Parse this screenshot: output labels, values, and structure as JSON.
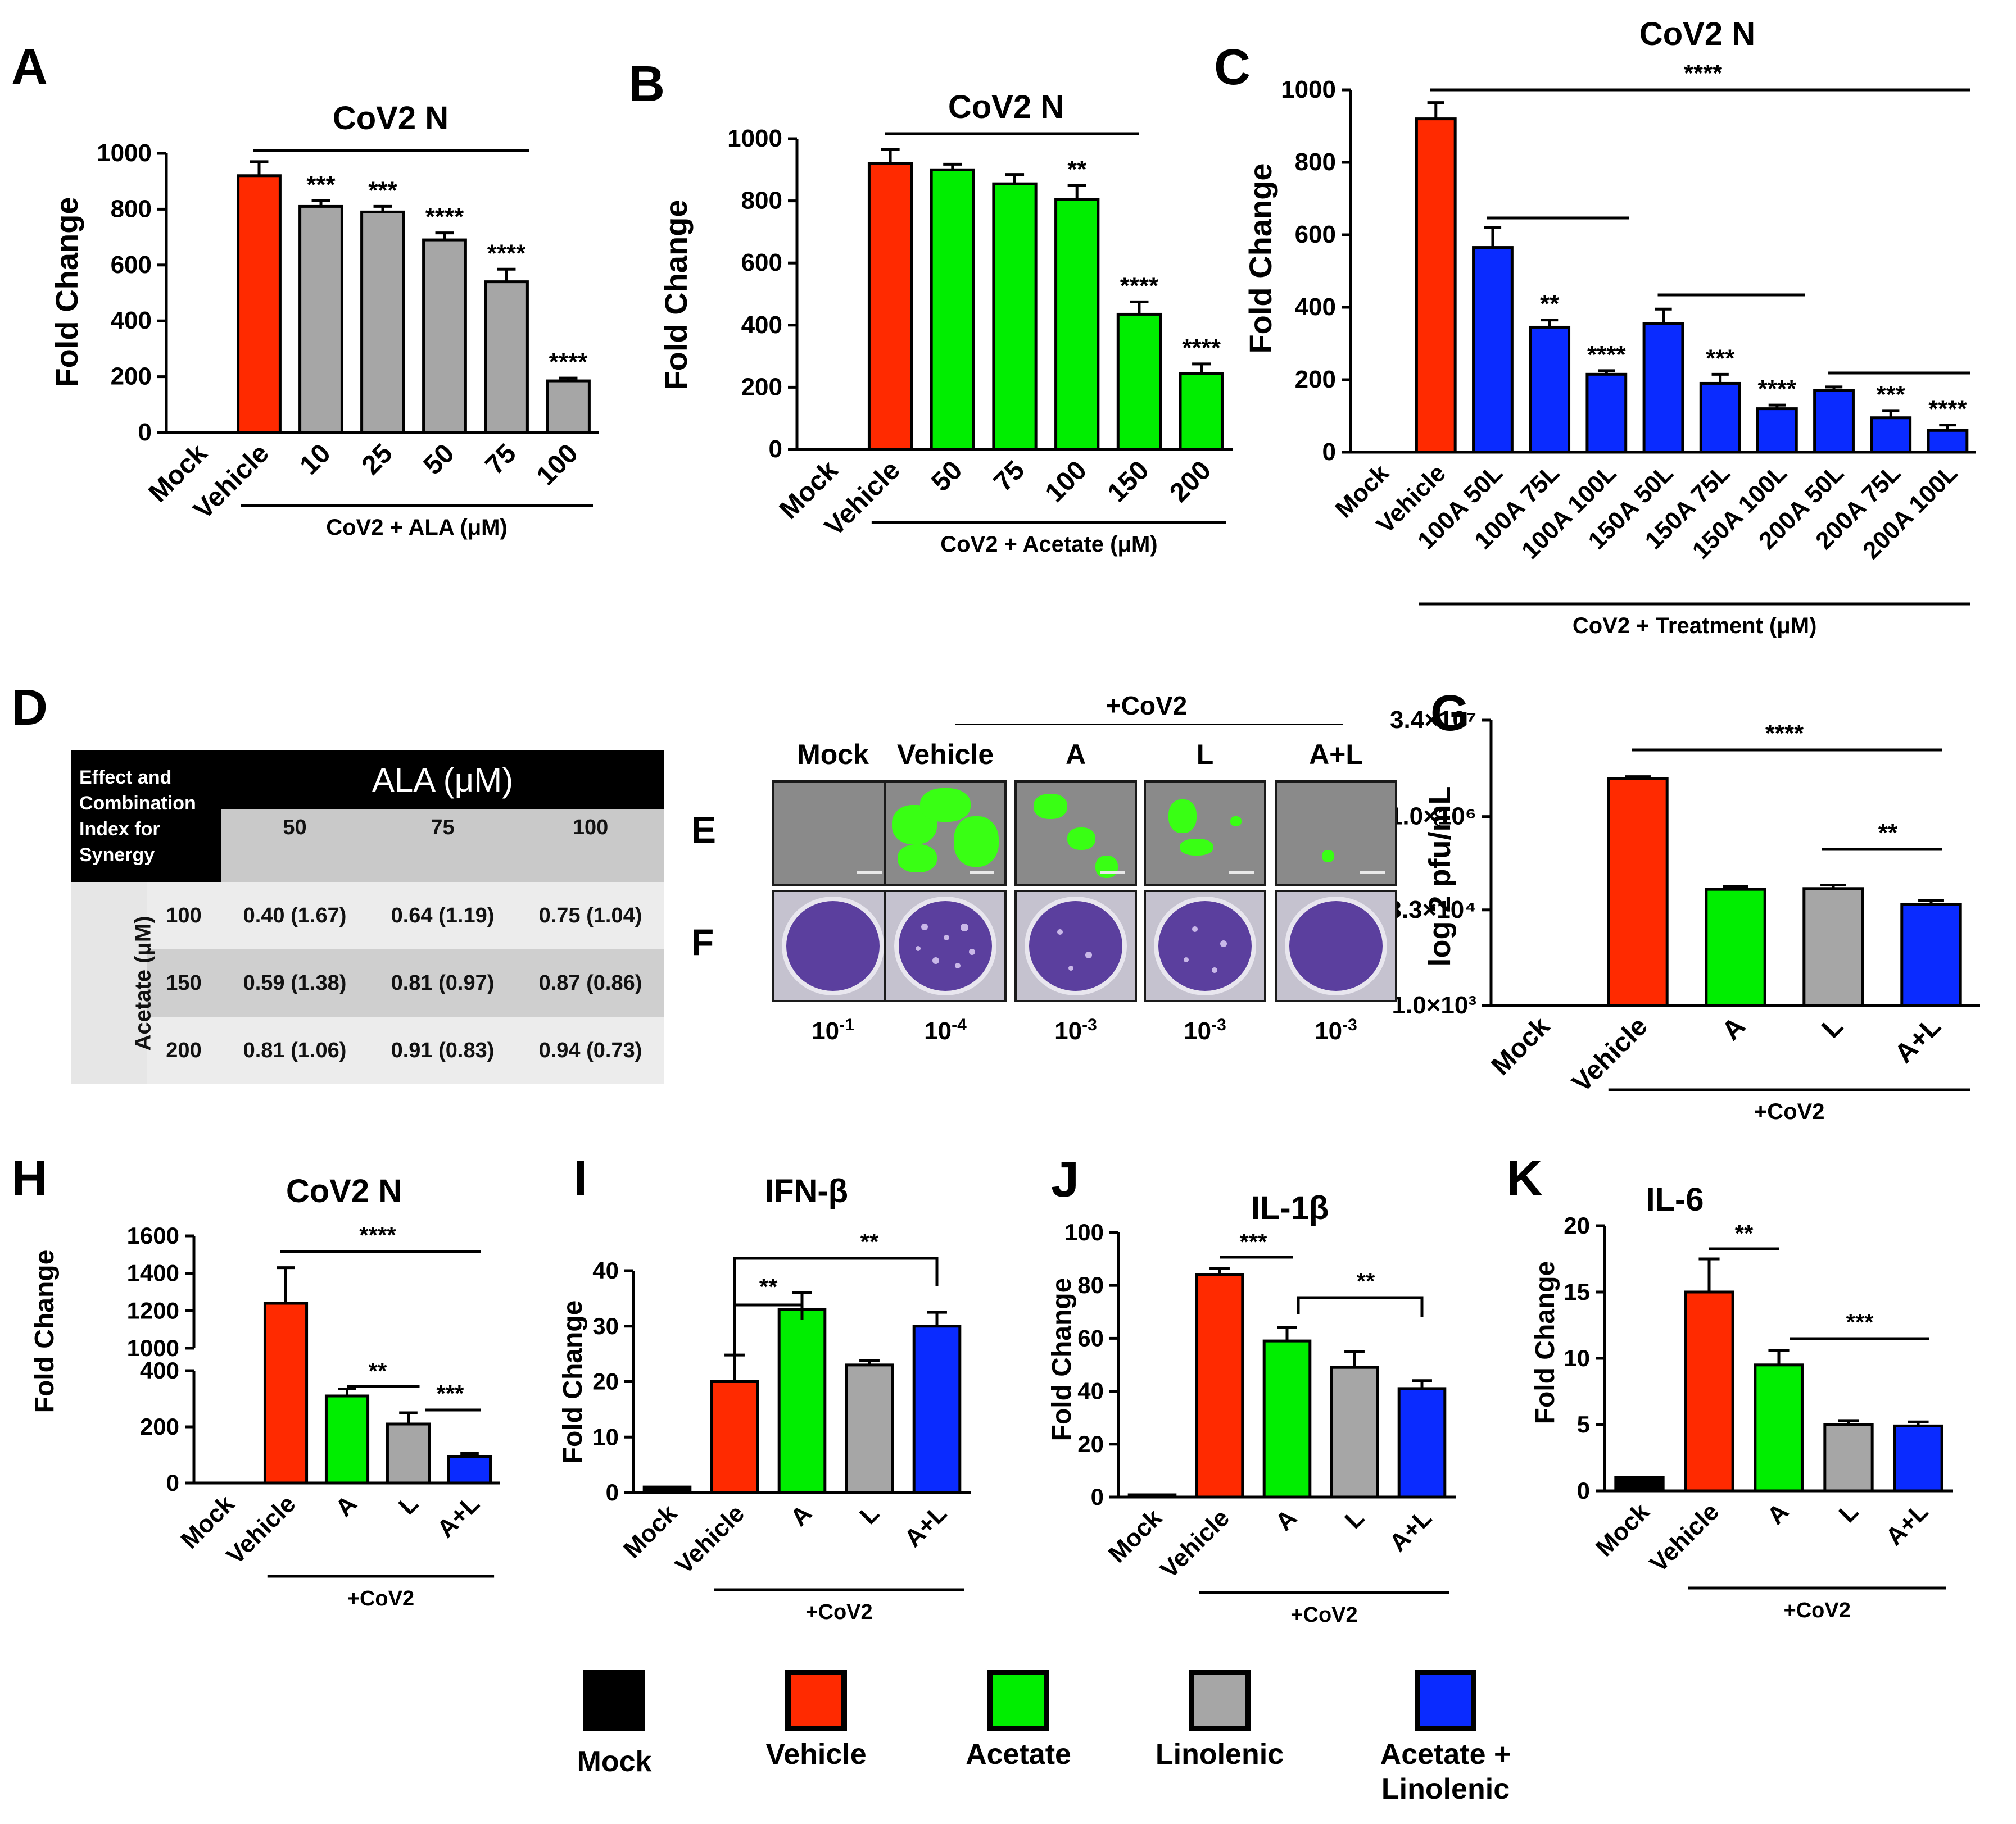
{
  "colors": {
    "mock": "#000000",
    "vehicle": "#ff2a00",
    "acetate": "#00ee00",
    "linolenic": "#a6a6a6",
    "combo": "#0a2bff"
  },
  "panelA": {
    "letter": "A",
    "title": "CoV2 N",
    "ylabel": "Fold  Change",
    "group_label": "CoV2 + ALA (μM)",
    "chart_data": {
      "type": "bar",
      "categories": [
        "Mock",
        "Vehicle",
        "10",
        "25",
        "50",
        "75",
        "100"
      ],
      "values": [
        0,
        920,
        810,
        790,
        690,
        540,
        185
      ],
      "errors": [
        0,
        50,
        20,
        20,
        25,
        45,
        10
      ],
      "ylim": [
        0,
        1000
      ],
      "yticks": [
        "0",
        "200",
        "400",
        "600",
        "800",
        "1000"
      ],
      "bar_colors": [
        "mock",
        "vehicle",
        "linolenic",
        "linolenic",
        "linolenic",
        "linolenic",
        "linolenic"
      ],
      "sig_labels": [
        "",
        "",
        "***",
        "***",
        "****",
        "****",
        "****"
      ]
    }
  },
  "panelB": {
    "letter": "B",
    "title": "CoV2 N",
    "ylabel": "Fold Change",
    "group_label": "CoV2 + Acetate (μM)",
    "chart_data": {
      "type": "bar",
      "categories": [
        "Mock",
        "Vehicle",
        "50",
        "75",
        "100",
        "150",
        "200"
      ],
      "values": [
        0,
        920,
        900,
        855,
        805,
        435,
        245
      ],
      "errors": [
        0,
        45,
        18,
        30,
        45,
        40,
        30
      ],
      "ylim": [
        0,
        1000
      ],
      "yticks": [
        "0",
        "200",
        "400",
        "600",
        "800",
        "1000"
      ],
      "bar_colors": [
        "mock",
        "vehicle",
        "acetate",
        "acetate",
        "acetate",
        "acetate",
        "acetate"
      ],
      "sig_labels": [
        "",
        "",
        "",
        "",
        "**",
        "****",
        "****"
      ]
    }
  },
  "panelC": {
    "letter": "C",
    "title": "CoV2 N",
    "ylabel": "Fold  Change",
    "group_label": "CoV2 + Treatment (μM)",
    "sig_top": "****",
    "chart_data": {
      "type": "bar",
      "categories": [
        "Mock",
        "Vehicle",
        "100A 50L",
        "100A 75L",
        "100A 100L",
        "150A 50L",
        "150A 75L",
        "150A 100L",
        "200A 50L",
        "200A 75L",
        "200A 100L"
      ],
      "values": [
        0,
        920,
        565,
        345,
        215,
        355,
        190,
        120,
        170,
        95,
        60
      ],
      "errors": [
        0,
        45,
        55,
        20,
        10,
        40,
        25,
        10,
        10,
        20,
        15
      ],
      "ylim": [
        0,
        1000
      ],
      "yticks": [
        "0",
        "200",
        "400",
        "600",
        "800",
        "1000"
      ],
      "bar_colors": [
        "mock",
        "vehicle",
        "combo",
        "combo",
        "combo",
        "combo",
        "combo",
        "combo",
        "combo",
        "combo",
        "combo"
      ],
      "sig_labels": [
        "",
        "",
        "",
        "**",
        "****",
        "",
        "***",
        "****",
        "",
        "***",
        "****"
      ]
    }
  },
  "panelD": {
    "letter": "D",
    "corner": "Effect and Combination Index for Synergy",
    "col_header": "ALA  (μM)",
    "row_header": "Acetate (μM)",
    "columns": [
      "50",
      "75",
      "100"
    ],
    "rows": [
      {
        "label": "100",
        "cells": [
          "0.40  (1.67)",
          "0.64 (1.19)",
          "0.75 (1.04)"
        ]
      },
      {
        "label": "150",
        "cells": [
          "0.59 (1.38)",
          "0.81 (0.97)",
          "0.87 (0.86)"
        ]
      },
      {
        "label": "200",
        "cells": [
          "0.81 (1.06)",
          "0.91 (0.83)",
          "0.94 (0.73)"
        ]
      }
    ]
  },
  "panelEF": {
    "letterE": "E",
    "letterF": "F",
    "group_label": "+CoV2",
    "columns": [
      "Mock",
      "Vehicle",
      "A",
      "L",
      "A+L"
    ],
    "dilutions": [
      {
        "base": "10",
        "exp": "-1"
      },
      {
        "base": "10",
        "exp": "-4"
      },
      {
        "base": "10",
        "exp": "-3"
      },
      {
        "base": "10",
        "exp": "-3"
      },
      {
        "base": "10",
        "exp": "-3"
      }
    ]
  },
  "panelG": {
    "letter": "G",
    "ylabel": "log 2 pfu/mL",
    "group_label": "+CoV2",
    "sig": [
      {
        "label": "****"
      },
      {
        "label": "**"
      }
    ],
    "chart_data": {
      "type": "bar",
      "scale": "log",
      "categories": [
        "Mock",
        "Vehicle",
        "A",
        "L",
        "A+L"
      ],
      "values": [
        0,
        4000000,
        70000,
        72000,
        40000
      ],
      "errors": [
        0,
        300000,
        7000,
        10000,
        7000
      ],
      "ylim": [
        1000,
        34000000
      ],
      "yticks": [
        "1.0×10³",
        "3.3×10⁴",
        "1.0×10⁶",
        "3.4×10⁷"
      ],
      "bar_colors": [
        "mock",
        "vehicle",
        "acetate",
        "linolenic",
        "combo"
      ]
    }
  },
  "panelH": {
    "letter": "H",
    "title": "CoV2 N",
    "ylabel": "Fold Change",
    "group_label": "+CoV2",
    "sig": [
      {
        "label": "****"
      },
      {
        "label": "**"
      },
      {
        "label": "***"
      }
    ],
    "chart_data": {
      "type": "bar",
      "axis_break": [
        400,
        1000
      ],
      "categories": [
        "Mock",
        "Vehicle",
        "A",
        "L",
        "A+L"
      ],
      "values": [
        0,
        1240,
        310,
        210,
        95
      ],
      "errors": [
        0,
        190,
        25,
        40,
        10
      ],
      "ylim": [
        0,
        1600
      ],
      "yticks": [
        "0",
        "200",
        "400",
        "1000",
        "1200",
        "1400",
        "1600"
      ],
      "bar_colors": [
        "mock",
        "vehicle",
        "acetate",
        "linolenic",
        "combo"
      ]
    }
  },
  "panelI": {
    "letter": "I",
    "title": "IFN-β",
    "ylabel": "Fold Change",
    "group_label": "+CoV2",
    "sig": [
      {
        "label": "**"
      },
      {
        "label": "**"
      }
    ],
    "chart_data": {
      "type": "bar",
      "categories": [
        "Mock",
        "Vehicle",
        "A",
        "L",
        "A+L"
      ],
      "values": [
        1,
        20,
        33,
        23,
        30
      ],
      "errors": [
        0,
        4.8,
        3,
        0.8,
        2.5
      ],
      "ylim": [
        0,
        40
      ],
      "yticks": [
        "0",
        "10",
        "20",
        "30",
        "40"
      ],
      "bar_colors": [
        "mock",
        "vehicle",
        "acetate",
        "linolenic",
        "combo"
      ]
    }
  },
  "panelJ": {
    "letter": "J",
    "title": "IL-1β",
    "ylabel": "Fold Change",
    "group_label": "+CoV2",
    "sig": [
      {
        "label": "***"
      },
      {
        "label": "**"
      }
    ],
    "chart_data": {
      "type": "bar",
      "categories": [
        "Mock",
        "Vehicle",
        "A",
        "L",
        "A+L"
      ],
      "values": [
        0.5,
        84,
        59,
        49,
        41
      ],
      "errors": [
        0,
        2.5,
        5,
        6,
        3
      ],
      "ylim": [
        0,
        100
      ],
      "yticks": [
        "0",
        "20",
        "40",
        "60",
        "80",
        "100"
      ],
      "bar_colors": [
        "mock",
        "vehicle",
        "acetate",
        "linolenic",
        "combo"
      ]
    }
  },
  "panelK": {
    "letter": "K",
    "title": "IL-6",
    "ylabel": "Fold Change",
    "group_label": "+CoV2",
    "sig": [
      {
        "label": "**"
      },
      {
        "label": "***"
      }
    ],
    "chart_data": {
      "type": "bar",
      "categories": [
        "Mock",
        "Vehicle",
        "A",
        "L",
        "A+L"
      ],
      "values": [
        1,
        15,
        9.5,
        5,
        4.9
      ],
      "errors": [
        0,
        2.5,
        1.1,
        0.3,
        0.3
      ],
      "ylim": [
        0,
        20
      ],
      "yticks": [
        "0",
        "5",
        "10",
        "15",
        "20"
      ],
      "bar_colors": [
        "mock",
        "vehicle",
        "acetate",
        "linolenic",
        "combo"
      ]
    }
  },
  "legend": [
    {
      "key": "mock",
      "label": "Mock"
    },
    {
      "key": "vehicle",
      "label": "Vehicle"
    },
    {
      "key": "acetate",
      "label": "Acetate"
    },
    {
      "key": "linolenic",
      "label": "Linolenic"
    },
    {
      "key": "combo",
      "label": "Acetate +\nLinolenic"
    }
  ]
}
